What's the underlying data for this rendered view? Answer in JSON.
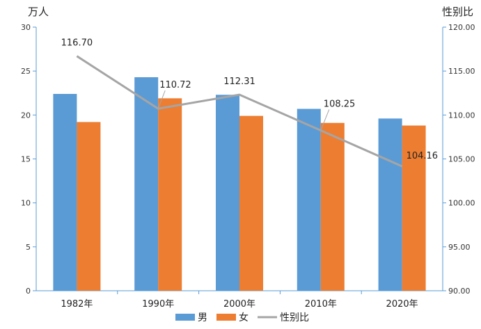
{
  "chart_data": {
    "type": "bar",
    "categories": [
      "1982年",
      "1990年",
      "2000年",
      "2010年",
      "2020年"
    ],
    "series": [
      {
        "name": "男",
        "values": [
          22.4,
          24.3,
          22.3,
          20.7,
          19.6
        ],
        "color": "#5B9BD5",
        "axis": "left",
        "kind": "bar"
      },
      {
        "name": "女",
        "values": [
          19.2,
          21.9,
          19.9,
          19.1,
          18.8
        ],
        "color": "#ED7D31",
        "axis": "left",
        "kind": "bar"
      },
      {
        "name": "性别比",
        "values": [
          116.7,
          110.72,
          112.31,
          108.25,
          104.16
        ],
        "color": "#A5A5A5",
        "axis": "right",
        "kind": "line"
      }
    ],
    "line_labels": [
      "116.70",
      "110.72",
      "112.31",
      "108.25",
      "104.16"
    ],
    "ylabel": "万人",
    "y2label": "性别比",
    "ylim": [
      0,
      30
    ],
    "y2lim": [
      90,
      120
    ],
    "yticks": [
      "0",
      "5",
      "10",
      "15",
      "20",
      "25",
      "30"
    ],
    "y2ticks": [
      "90.00",
      "95.00",
      "100.00",
      "105.00",
      "110.00",
      "115.00",
      "120.00"
    ],
    "grid": false,
    "legend_position": "bottom"
  }
}
